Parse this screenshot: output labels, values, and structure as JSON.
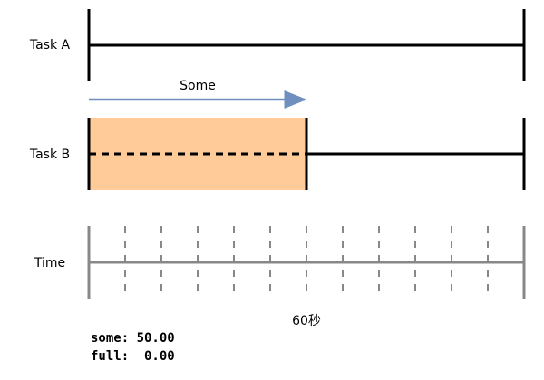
{
  "rows": [
    {
      "label": "Task A"
    },
    {
      "label": "Task B"
    },
    {
      "label": "Time"
    }
  ],
  "arrow_label": "Some",
  "time_label": "60秒",
  "stats": [
    "some: 50.00",
    "full:  0.00"
  ]
}
